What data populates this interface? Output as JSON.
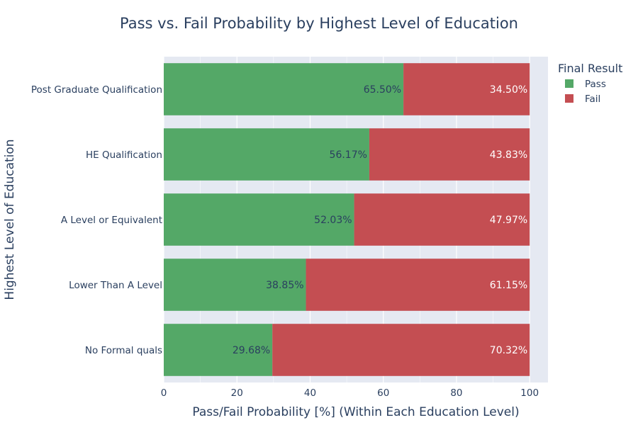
{
  "chart_data": {
    "type": "bar",
    "orientation": "horizontal",
    "stacked": true,
    "title": "Pass vs. Fail Probability by Highest Level of Education",
    "xlabel": "Pass/Fail Probability [%] (Within Each Education Level)",
    "ylabel": "Highest Level of Education",
    "xlim": [
      0,
      105
    ],
    "xticks": [
      0,
      20,
      40,
      60,
      80,
      100
    ],
    "grid": true,
    "legend_title": "Final Result",
    "legend_position": "top-right",
    "categories": [
      "Post Graduate Qualification",
      "HE Qualification",
      "A Level or Equivalent",
      "Lower Than A Level",
      "No Formal quals"
    ],
    "series": [
      {
        "name": "Pass",
        "color": "#54a867",
        "label_color": "#2a3f5f",
        "values": [
          65.5,
          56.17,
          52.03,
          38.85,
          29.68
        ],
        "labels": [
          "65.50%",
          "56.17%",
          "52.03%",
          "38.85%",
          "29.68%"
        ]
      },
      {
        "name": "Fail",
        "color": "#c44e52",
        "label_color": "#ffffff",
        "values": [
          34.5,
          43.83,
          47.97,
          61.15,
          70.32
        ],
        "labels": [
          "34.50%",
          "43.83%",
          "47.97%",
          "61.15%",
          "70.32%"
        ]
      }
    ]
  }
}
